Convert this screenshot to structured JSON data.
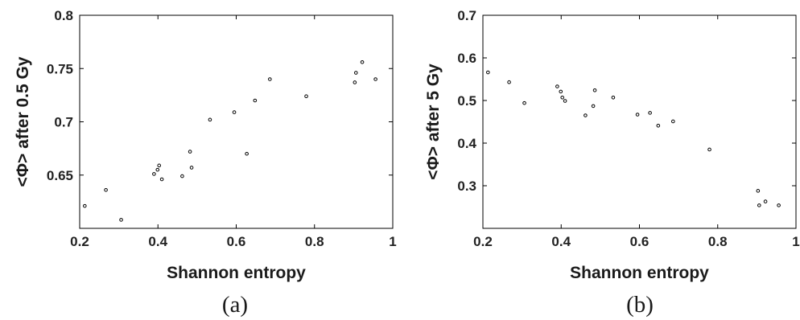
{
  "chart_data": [
    {
      "type": "scatter",
      "panel_label": "(a)",
      "xlabel": "Shannon entropy",
      "ylabel": "<Φ> after 0.5 Gy",
      "xlim": [
        0.2,
        1
      ],
      "ylim": [
        0.6,
        0.8
      ],
      "xticks": [
        0.2,
        0.4,
        0.6,
        0.8,
        1
      ],
      "xtick_labels": [
        "0.2",
        "0.4",
        "0.6",
        "0.8",
        "1"
      ],
      "yticks": [
        0.65,
        0.7,
        0.75,
        0.8
      ],
      "ytick_labels": [
        "0.65",
        "0.7",
        "0.75",
        "0.8"
      ],
      "grid": false,
      "points": [
        {
          "x": 0.213,
          "y": 0.621
        },
        {
          "x": 0.267,
          "y": 0.636
        },
        {
          "x": 0.306,
          "y": 0.608
        },
        {
          "x": 0.39,
          "y": 0.651
        },
        {
          "x": 0.399,
          "y": 0.655
        },
        {
          "x": 0.403,
          "y": 0.659
        },
        {
          "x": 0.41,
          "y": 0.646
        },
        {
          "x": 0.462,
          "y": 0.649
        },
        {
          "x": 0.482,
          "y": 0.672
        },
        {
          "x": 0.486,
          "y": 0.657
        },
        {
          "x": 0.533,
          "y": 0.702
        },
        {
          "x": 0.595,
          "y": 0.709
        },
        {
          "x": 0.627,
          "y": 0.67
        },
        {
          "x": 0.648,
          "y": 0.72
        },
        {
          "x": 0.686,
          "y": 0.74
        },
        {
          "x": 0.779,
          "y": 0.724
        },
        {
          "x": 0.903,
          "y": 0.737
        },
        {
          "x": 0.906,
          "y": 0.746
        },
        {
          "x": 0.922,
          "y": 0.756
        },
        {
          "x": 0.956,
          "y": 0.74
        }
      ]
    },
    {
      "type": "scatter",
      "panel_label": "(b)",
      "xlabel": "Shannon entropy",
      "ylabel": "<Φ> after 5 Gy",
      "xlim": [
        0.2,
        1
      ],
      "ylim": [
        0.2,
        0.7
      ],
      "xticks": [
        0.2,
        0.4,
        0.6,
        0.8,
        1
      ],
      "xtick_labels": [
        "0.2",
        "0.4",
        "0.6",
        "0.8",
        "1"
      ],
      "yticks": [
        0.3,
        0.4,
        0.5,
        0.6,
        0.7
      ],
      "ytick_labels": [
        "0.3",
        "0.4",
        "0.5",
        "0.6",
        "0.7"
      ],
      "grid": false,
      "points": [
        {
          "x": 0.213,
          "y": 0.566
        },
        {
          "x": 0.267,
          "y": 0.543
        },
        {
          "x": 0.306,
          "y": 0.494
        },
        {
          "x": 0.39,
          "y": 0.533
        },
        {
          "x": 0.399,
          "y": 0.521
        },
        {
          "x": 0.403,
          "y": 0.507
        },
        {
          "x": 0.41,
          "y": 0.499
        },
        {
          "x": 0.462,
          "y": 0.465
        },
        {
          "x": 0.482,
          "y": 0.487
        },
        {
          "x": 0.486,
          "y": 0.524
        },
        {
          "x": 0.533,
          "y": 0.507
        },
        {
          "x": 0.595,
          "y": 0.467
        },
        {
          "x": 0.627,
          "y": 0.471
        },
        {
          "x": 0.648,
          "y": 0.441
        },
        {
          "x": 0.686,
          "y": 0.451
        },
        {
          "x": 0.779,
          "y": 0.385
        },
        {
          "x": 0.903,
          "y": 0.288
        },
        {
          "x": 0.906,
          "y": 0.254
        },
        {
          "x": 0.922,
          "y": 0.263
        },
        {
          "x": 0.956,
          "y": 0.254
        }
      ]
    }
  ]
}
